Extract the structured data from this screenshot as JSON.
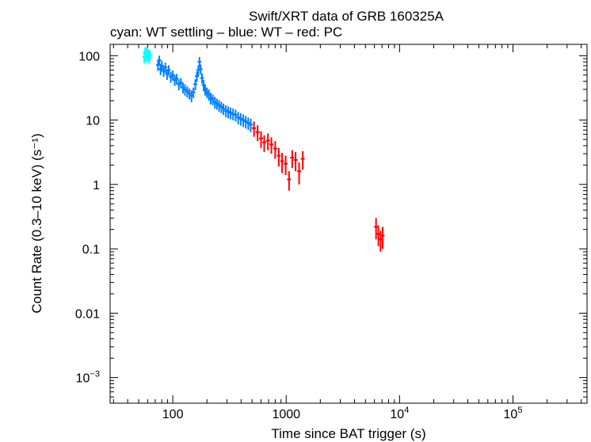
{
  "chart_data": {
    "type": "scatter",
    "title": "Swift/XRT data of GRB 160325A",
    "subtitle": "cyan: WT settling – blue: WT – red: PC",
    "xlabel": "Time since BAT trigger (s)",
    "ylabel": "Count Rate (0.3–10 keV) (s⁻¹)",
    "xscale": "log",
    "yscale": "log",
    "xlim": [
      28,
      450000
    ],
    "ylim": [
      0.0004,
      150
    ],
    "x_ticks": [
      {
        "value": 100,
        "label": "100"
      },
      {
        "value": 1000,
        "label": "1000"
      },
      {
        "value": 10000,
        "label": "10",
        "exp": "4"
      },
      {
        "value": 100000,
        "label": "10",
        "exp": "5"
      }
    ],
    "y_ticks": [
      {
        "value": 100,
        "label": "100"
      },
      {
        "value": 10,
        "label": "10"
      },
      {
        "value": 1,
        "label": "1"
      },
      {
        "value": 0.1,
        "label": "0.1"
      },
      {
        "value": 0.01,
        "label": "0.01"
      },
      {
        "value": 0.001,
        "label": "10",
        "exp": "−3"
      }
    ],
    "grid": false,
    "legend": "none",
    "series": [
      {
        "mode": "WT settling",
        "color": "#00ffff",
        "points": [
          {
            "x": 56,
            "y": 95,
            "yerr": 18
          },
          {
            "x": 57,
            "y": 115,
            "yerr": 20
          },
          {
            "x": 58,
            "y": 100,
            "yerr": 18
          },
          {
            "x": 59,
            "y": 118,
            "yerr": 20
          },
          {
            "x": 60,
            "y": 98,
            "yerr": 18
          },
          {
            "x": 61,
            "y": 108,
            "yerr": 19
          },
          {
            "x": 62,
            "y": 92,
            "yerr": 17
          },
          {
            "x": 63,
            "y": 103,
            "yerr": 18
          }
        ]
      },
      {
        "mode": "WT",
        "color": "#0080ff",
        "points": [
          {
            "x": 74,
            "y": 72,
            "yerr": 14
          },
          {
            "x": 76,
            "y": 85,
            "yerr": 15
          },
          {
            "x": 78,
            "y": 62,
            "yerr": 12
          },
          {
            "x": 80,
            "y": 70,
            "yerr": 13
          },
          {
            "x": 83,
            "y": 58,
            "yerr": 11
          },
          {
            "x": 86,
            "y": 66,
            "yerr": 12
          },
          {
            "x": 89,
            "y": 52,
            "yerr": 10
          },
          {
            "x": 92,
            "y": 60,
            "yerr": 11
          },
          {
            "x": 96,
            "y": 47,
            "yerr": 9
          },
          {
            "x": 100,
            "y": 50,
            "yerr": 9
          },
          {
            "x": 104,
            "y": 42,
            "yerr": 8
          },
          {
            "x": 108,
            "y": 44,
            "yerr": 8
          },
          {
            "x": 113,
            "y": 36,
            "yerr": 7
          },
          {
            "x": 118,
            "y": 38,
            "yerr": 7
          },
          {
            "x": 123,
            "y": 32,
            "yerr": 6
          },
          {
            "x": 128,
            "y": 30,
            "yerr": 6
          },
          {
            "x": 134,
            "y": 28,
            "yerr": 5.5
          },
          {
            "x": 140,
            "y": 26,
            "yerr": 5
          },
          {
            "x": 146,
            "y": 24,
            "yerr": 5
          },
          {
            "x": 152,
            "y": 27,
            "yerr": 5
          },
          {
            "x": 158,
            "y": 36,
            "yerr": 7
          },
          {
            "x": 163,
            "y": 48,
            "yerr": 9
          },
          {
            "x": 168,
            "y": 60,
            "yerr": 11
          },
          {
            "x": 172,
            "y": 80,
            "yerr": 15
          },
          {
            "x": 176,
            "y": 62,
            "yerr": 11
          },
          {
            "x": 181,
            "y": 45,
            "yerr": 8
          },
          {
            "x": 187,
            "y": 35,
            "yerr": 7
          },
          {
            "x": 193,
            "y": 30,
            "yerr": 6
          },
          {
            "x": 200,
            "y": 27,
            "yerr": 5
          },
          {
            "x": 208,
            "y": 25,
            "yerr": 5
          },
          {
            "x": 216,
            "y": 22,
            "yerr": 4.5
          },
          {
            "x": 225,
            "y": 21,
            "yerr": 4
          },
          {
            "x": 235,
            "y": 19,
            "yerr": 4
          },
          {
            "x": 245,
            "y": 18,
            "yerr": 3.5
          },
          {
            "x": 256,
            "y": 17,
            "yerr": 3.5
          },
          {
            "x": 268,
            "y": 16,
            "yerr": 3.2
          },
          {
            "x": 280,
            "y": 15,
            "yerr": 3
          },
          {
            "x": 294,
            "y": 14,
            "yerr": 3
          },
          {
            "x": 308,
            "y": 13.5,
            "yerr": 2.8
          },
          {
            "x": 323,
            "y": 13,
            "yerr": 2.7
          },
          {
            "x": 340,
            "y": 12.5,
            "yerr": 2.6
          },
          {
            "x": 358,
            "y": 12,
            "yerr": 2.5
          },
          {
            "x": 377,
            "y": 11,
            "yerr": 2.4
          },
          {
            "x": 397,
            "y": 10.5,
            "yerr": 2.3
          },
          {
            "x": 418,
            "y": 10,
            "yerr": 2.2
          },
          {
            "x": 440,
            "y": 9.5,
            "yerr": 2.1
          },
          {
            "x": 463,
            "y": 9,
            "yerr": 2
          },
          {
            "x": 487,
            "y": 8.5,
            "yerr": 2
          }
        ]
      },
      {
        "mode": "PC",
        "color": "#ff0000",
        "points": [
          {
            "x": 520,
            "y": 7.5,
            "yerr": 2
          },
          {
            "x": 560,
            "y": 6.5,
            "yerr": 1.8
          },
          {
            "x": 600,
            "y": 5.2,
            "yerr": 1.5
          },
          {
            "x": 640,
            "y": 4.5,
            "yerr": 1.3
          },
          {
            "x": 690,
            "y": 4.8,
            "yerr": 1.4
          },
          {
            "x": 740,
            "y": 4.2,
            "yerr": 1.2
          },
          {
            "x": 800,
            "y": 3.6,
            "yerr": 1.1
          },
          {
            "x": 860,
            "y": 2.8,
            "yerr": 0.9
          },
          {
            "x": 920,
            "y": 2.3,
            "yerr": 0.8
          },
          {
            "x": 990,
            "y": 2.1,
            "yerr": 0.7
          },
          {
            "x": 1060,
            "y": 1.2,
            "yerr": 0.4
          },
          {
            "x": 1130,
            "y": 2.6,
            "yerr": 0.8
          },
          {
            "x": 1210,
            "y": 2.4,
            "yerr": 0.8
          },
          {
            "x": 1300,
            "y": 1.6,
            "yerr": 0.6
          },
          {
            "x": 1400,
            "y": 2.5,
            "yerr": 0.8
          },
          {
            "x": 6200,
            "y": 0.22,
            "yerr": 0.08
          },
          {
            "x": 6500,
            "y": 0.17,
            "yerr": 0.06
          },
          {
            "x": 6800,
            "y": 0.14,
            "yerr": 0.05
          },
          {
            "x": 7100,
            "y": 0.16,
            "yerr": 0.06
          }
        ]
      }
    ]
  }
}
